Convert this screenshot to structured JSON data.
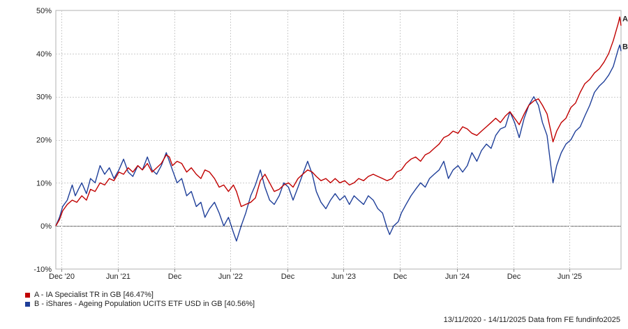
{
  "chart_data": {
    "type": "line",
    "title": "",
    "xlabel": "",
    "ylabel": "",
    "ylim": [
      -10,
      50
    ],
    "yticks": [
      -10,
      0,
      10,
      20,
      30,
      40,
      50
    ],
    "ytick_labels": [
      "-10%",
      "0%",
      "10%",
      "20%",
      "30%",
      "40%",
      "50%"
    ],
    "x_range": [
      "2020-11-13",
      "2025-11-14"
    ],
    "xticks": [
      {
        "date": "2020-12-01",
        "label": "Dec '20"
      },
      {
        "date": "2021-06-01",
        "label": "Jun '21"
      },
      {
        "date": "2021-12-01",
        "label": "Dec"
      },
      {
        "date": "2022-06-01",
        "label": "Jun '22"
      },
      {
        "date": "2022-12-01",
        "label": "Dec"
      },
      {
        "date": "2023-06-01",
        "label": "Jun '23"
      },
      {
        "date": "2023-12-01",
        "label": "Dec"
      },
      {
        "date": "2024-06-01",
        "label": "Jun '24"
      },
      {
        "date": "2024-12-01",
        "label": "Dec"
      },
      {
        "date": "2025-06-01",
        "label": "Jun '25"
      }
    ],
    "grid": true,
    "zero_line": "dotted",
    "series": [
      {
        "name": "A",
        "legend": "A - IA Specialist TR in GB [46.47%]",
        "color": "#c00000",
        "points": [
          [
            "2020-11-13",
            0
          ],
          [
            "2020-11-25",
            1.5
          ],
          [
            "2020-12-05",
            3.5
          ],
          [
            "2020-12-20",
            5
          ],
          [
            "2021-01-05",
            6
          ],
          [
            "2021-01-20",
            5.5
          ],
          [
            "2021-02-05",
            7
          ],
          [
            "2021-02-20",
            6
          ],
          [
            "2021-03-05",
            8.5
          ],
          [
            "2021-03-20",
            8
          ],
          [
            "2021-04-05",
            10
          ],
          [
            "2021-04-20",
            9.5
          ],
          [
            "2021-05-05",
            11
          ],
          [
            "2021-05-20",
            10.5
          ],
          [
            "2021-06-05",
            12.5
          ],
          [
            "2021-06-20",
            12
          ],
          [
            "2021-07-05",
            13.5
          ],
          [
            "2021-07-20",
            12.5
          ],
          [
            "2021-08-05",
            14
          ],
          [
            "2021-08-20",
            13
          ],
          [
            "2021-09-05",
            14.5
          ],
          [
            "2021-09-20",
            12.5
          ],
          [
            "2021-10-05",
            13.5
          ],
          [
            "2021-10-20",
            14.5
          ],
          [
            "2021-11-05",
            16.5
          ],
          [
            "2021-11-15",
            16
          ],
          [
            "2021-11-25",
            14
          ],
          [
            "2021-12-10",
            15
          ],
          [
            "2021-12-25",
            14.5
          ],
          [
            "2022-01-10",
            12.5
          ],
          [
            "2022-01-25",
            13.5
          ],
          [
            "2022-02-10",
            12
          ],
          [
            "2022-02-25",
            11
          ],
          [
            "2022-03-10",
            13
          ],
          [
            "2022-03-25",
            12.5
          ],
          [
            "2022-04-10",
            11
          ],
          [
            "2022-04-25",
            9
          ],
          [
            "2022-05-10",
            9.5
          ],
          [
            "2022-05-25",
            8
          ],
          [
            "2022-06-10",
            9.5
          ],
          [
            "2022-06-20",
            8
          ],
          [
            "2022-07-05",
            4.5
          ],
          [
            "2022-07-20",
            5
          ],
          [
            "2022-08-05",
            5.5
          ],
          [
            "2022-08-20",
            6.5
          ],
          [
            "2022-09-05",
            10.5
          ],
          [
            "2022-09-20",
            12
          ],
          [
            "2022-10-05",
            10
          ],
          [
            "2022-10-20",
            8
          ],
          [
            "2022-11-05",
            8.5
          ],
          [
            "2022-11-20",
            9.5
          ],
          [
            "2022-12-05",
            10
          ],
          [
            "2022-12-20",
            9
          ],
          [
            "2023-01-05",
            11
          ],
          [
            "2023-01-20",
            12
          ],
          [
            "2023-02-05",
            13
          ],
          [
            "2023-02-20",
            12.5
          ],
          [
            "2023-03-05",
            11.5
          ],
          [
            "2023-03-20",
            10.5
          ],
          [
            "2023-04-05",
            11
          ],
          [
            "2023-04-20",
            10
          ],
          [
            "2023-05-05",
            11
          ],
          [
            "2023-05-20",
            10
          ],
          [
            "2023-06-05",
            10.5
          ],
          [
            "2023-06-20",
            9.5
          ],
          [
            "2023-07-05",
            10
          ],
          [
            "2023-07-20",
            11
          ],
          [
            "2023-08-05",
            10.5
          ],
          [
            "2023-08-20",
            11.5
          ],
          [
            "2023-09-05",
            12
          ],
          [
            "2023-09-20",
            11.5
          ],
          [
            "2023-10-05",
            11
          ],
          [
            "2023-10-20",
            10.5
          ],
          [
            "2023-11-05",
            11
          ],
          [
            "2023-11-20",
            12.5
          ],
          [
            "2023-12-05",
            13
          ],
          [
            "2023-12-20",
            14.5
          ],
          [
            "2024-01-05",
            15.5
          ],
          [
            "2024-01-20",
            16
          ],
          [
            "2024-02-05",
            15
          ],
          [
            "2024-02-20",
            16.5
          ],
          [
            "2024-03-05",
            17
          ],
          [
            "2024-03-20",
            18
          ],
          [
            "2024-04-05",
            19
          ],
          [
            "2024-04-20",
            20.5
          ],
          [
            "2024-05-05",
            21
          ],
          [
            "2024-05-20",
            22
          ],
          [
            "2024-06-05",
            21.5
          ],
          [
            "2024-06-20",
            23
          ],
          [
            "2024-07-05",
            22.5
          ],
          [
            "2024-07-20",
            21.5
          ],
          [
            "2024-08-05",
            21
          ],
          [
            "2024-08-20",
            22
          ],
          [
            "2024-09-05",
            23
          ],
          [
            "2024-09-20",
            24
          ],
          [
            "2024-10-05",
            25
          ],
          [
            "2024-10-20",
            24
          ],
          [
            "2024-11-05",
            25.5
          ],
          [
            "2024-11-20",
            26.5
          ],
          [
            "2024-12-05",
            25
          ],
          [
            "2024-12-20",
            23.5
          ],
          [
            "2025-01-05",
            26
          ],
          [
            "2025-01-20",
            28
          ],
          [
            "2025-02-05",
            29
          ],
          [
            "2025-02-20",
            29.5
          ],
          [
            "2025-03-05",
            28
          ],
          [
            "2025-03-20",
            26
          ],
          [
            "2025-04-01",
            22
          ],
          [
            "2025-04-08",
            19.5
          ],
          [
            "2025-04-20",
            22
          ],
          [
            "2025-05-05",
            24
          ],
          [
            "2025-05-20",
            25
          ],
          [
            "2025-06-05",
            27.5
          ],
          [
            "2025-06-20",
            28.5
          ],
          [
            "2025-07-05",
            31
          ],
          [
            "2025-07-20",
            33
          ],
          [
            "2025-08-05",
            34
          ],
          [
            "2025-08-20",
            35.5
          ],
          [
            "2025-09-05",
            36.5
          ],
          [
            "2025-09-20",
            38
          ],
          [
            "2025-10-05",
            40
          ],
          [
            "2025-10-20",
            43
          ],
          [
            "2025-11-05",
            47
          ],
          [
            "2025-11-10",
            48.5
          ],
          [
            "2025-11-14",
            46.47
          ]
        ]
      },
      {
        "name": "B",
        "legend": "B - iShares - Ageing Population UCITS ETF USD in GB [40.56%]",
        "color": "#1f3f99",
        "points": [
          [
            "2020-11-13",
            0
          ],
          [
            "2020-11-25",
            2
          ],
          [
            "2020-12-05",
            4.5
          ],
          [
            "2020-12-20",
            6
          ],
          [
            "2021-01-05",
            9.5
          ],
          [
            "2021-01-15",
            7
          ],
          [
            "2021-01-25",
            8.5
          ],
          [
            "2021-02-05",
            10
          ],
          [
            "2021-02-20",
            7.5
          ],
          [
            "2021-03-05",
            11
          ],
          [
            "2021-03-20",
            10
          ],
          [
            "2021-04-05",
            14
          ],
          [
            "2021-04-20",
            12
          ],
          [
            "2021-05-05",
            13.5
          ],
          [
            "2021-05-20",
            11
          ],
          [
            "2021-06-05",
            13
          ],
          [
            "2021-06-20",
            15.5
          ],
          [
            "2021-07-05",
            12.5
          ],
          [
            "2021-07-20",
            11.5
          ],
          [
            "2021-08-05",
            14
          ],
          [
            "2021-08-20",
            13
          ],
          [
            "2021-09-05",
            16
          ],
          [
            "2021-09-20",
            13
          ],
          [
            "2021-10-05",
            12
          ],
          [
            "2021-10-20",
            14
          ],
          [
            "2021-11-05",
            17
          ],
          [
            "2021-11-15",
            15
          ],
          [
            "2021-11-25",
            13
          ],
          [
            "2021-12-10",
            10
          ],
          [
            "2021-12-25",
            11
          ],
          [
            "2022-01-10",
            7
          ],
          [
            "2022-01-25",
            8
          ],
          [
            "2022-02-10",
            4.5
          ],
          [
            "2022-02-25",
            5.5
          ],
          [
            "2022-03-10",
            2
          ],
          [
            "2022-03-25",
            4
          ],
          [
            "2022-04-10",
            5.5
          ],
          [
            "2022-04-25",
            3
          ],
          [
            "2022-05-10",
            0
          ],
          [
            "2022-05-25",
            2
          ],
          [
            "2022-06-10",
            -1.5
          ],
          [
            "2022-06-20",
            -3.5
          ],
          [
            "2022-07-05",
            0
          ],
          [
            "2022-07-20",
            3
          ],
          [
            "2022-08-05",
            7
          ],
          [
            "2022-08-20",
            9.5
          ],
          [
            "2022-09-05",
            13
          ],
          [
            "2022-09-20",
            9
          ],
          [
            "2022-10-05",
            6
          ],
          [
            "2022-10-20",
            5
          ],
          [
            "2022-11-05",
            7
          ],
          [
            "2022-11-20",
            10
          ],
          [
            "2022-12-05",
            9
          ],
          [
            "2022-12-20",
            6
          ],
          [
            "2023-01-05",
            9
          ],
          [
            "2023-01-20",
            12
          ],
          [
            "2023-02-05",
            15
          ],
          [
            "2023-02-20",
            12
          ],
          [
            "2023-03-05",
            8
          ],
          [
            "2023-03-20",
            5.5
          ],
          [
            "2023-04-05",
            4
          ],
          [
            "2023-04-20",
            6
          ],
          [
            "2023-05-05",
            7.5
          ],
          [
            "2023-05-20",
            6
          ],
          [
            "2023-06-05",
            7
          ],
          [
            "2023-06-20",
            5
          ],
          [
            "2023-07-05",
            7
          ],
          [
            "2023-07-20",
            6
          ],
          [
            "2023-08-05",
            5
          ],
          [
            "2023-08-20",
            7
          ],
          [
            "2023-09-05",
            6
          ],
          [
            "2023-09-20",
            4
          ],
          [
            "2023-10-05",
            3
          ],
          [
            "2023-10-20",
            -0.5
          ],
          [
            "2023-10-28",
            -2
          ],
          [
            "2023-11-10",
            0
          ],
          [
            "2023-11-25",
            1
          ],
          [
            "2023-12-05",
            3
          ],
          [
            "2023-12-20",
            5
          ],
          [
            "2024-01-05",
            7
          ],
          [
            "2024-01-20",
            8.5
          ],
          [
            "2024-02-05",
            10
          ],
          [
            "2024-02-20",
            9
          ],
          [
            "2024-03-05",
            11
          ],
          [
            "2024-03-20",
            12
          ],
          [
            "2024-04-05",
            13
          ],
          [
            "2024-04-20",
            15
          ],
          [
            "2024-05-05",
            11
          ],
          [
            "2024-05-20",
            13
          ],
          [
            "2024-06-05",
            14
          ],
          [
            "2024-06-20",
            12.5
          ],
          [
            "2024-07-05",
            14
          ],
          [
            "2024-07-20",
            17
          ],
          [
            "2024-08-05",
            15
          ],
          [
            "2024-08-20",
            17.5
          ],
          [
            "2024-09-05",
            19
          ],
          [
            "2024-09-20",
            18
          ],
          [
            "2024-10-05",
            21
          ],
          [
            "2024-10-20",
            22.5
          ],
          [
            "2024-11-05",
            23
          ],
          [
            "2024-11-20",
            26.5
          ],
          [
            "2024-12-05",
            24
          ],
          [
            "2024-12-20",
            20.5
          ],
          [
            "2025-01-05",
            25
          ],
          [
            "2025-01-20",
            28
          ],
          [
            "2025-02-05",
            30
          ],
          [
            "2025-02-20",
            28
          ],
          [
            "2025-03-05",
            24
          ],
          [
            "2025-03-20",
            21
          ],
          [
            "2025-04-01",
            14
          ],
          [
            "2025-04-08",
            10
          ],
          [
            "2025-04-20",
            14
          ],
          [
            "2025-05-05",
            17
          ],
          [
            "2025-05-20",
            19
          ],
          [
            "2025-06-05",
            20
          ],
          [
            "2025-06-20",
            22
          ],
          [
            "2025-07-05",
            23
          ],
          [
            "2025-07-20",
            25.5
          ],
          [
            "2025-08-05",
            28
          ],
          [
            "2025-08-20",
            31
          ],
          [
            "2025-09-05",
            32.5
          ],
          [
            "2025-09-20",
            33.5
          ],
          [
            "2025-10-05",
            35
          ],
          [
            "2025-10-20",
            37
          ],
          [
            "2025-11-05",
            41
          ],
          [
            "2025-11-10",
            42
          ],
          [
            "2025-11-14",
            40.56
          ]
        ]
      }
    ],
    "source": "13/11/2020 - 14/11/2025 Data from FE fundinfo2025"
  }
}
